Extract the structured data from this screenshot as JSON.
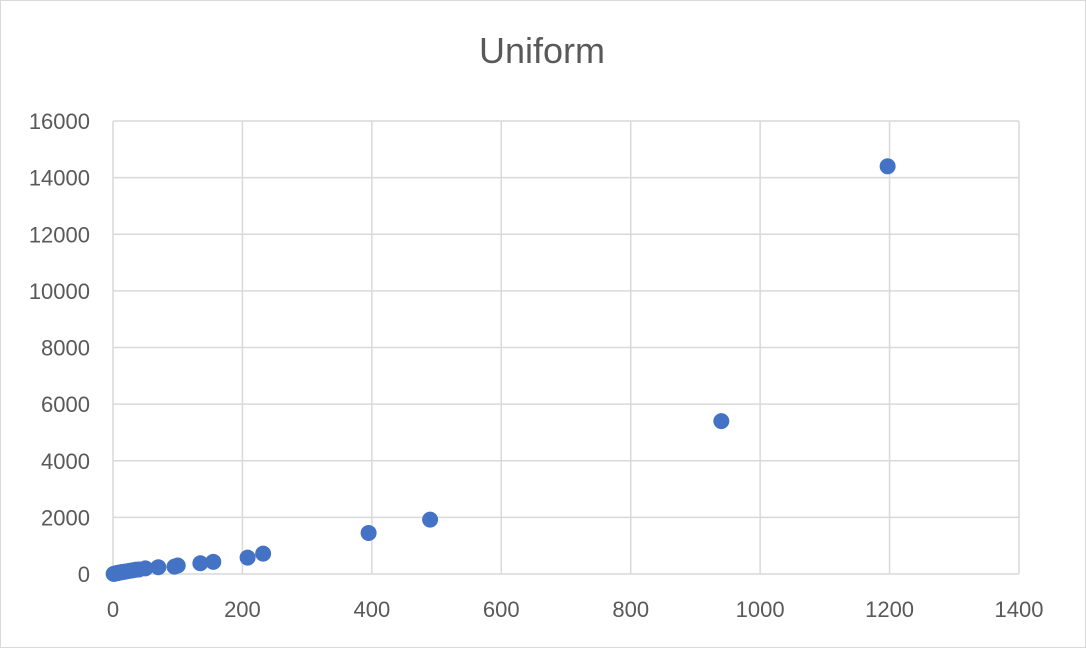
{
  "chart_data": {
    "type": "scatter",
    "title": "Uniform",
    "xlabel": "",
    "ylabel": "",
    "xlim": [
      0,
      1400
    ],
    "ylim": [
      0,
      16000
    ],
    "xticks": [
      0,
      200,
      400,
      600,
      800,
      1000,
      1200,
      1400
    ],
    "yticks": [
      0,
      2000,
      4000,
      6000,
      8000,
      10000,
      12000,
      14000,
      16000
    ],
    "grid": true,
    "legend": "none",
    "marker_color": "#4472C4",
    "series": [
      {
        "x": [
          1,
          2,
          4,
          6,
          8,
          10,
          12,
          15,
          18,
          20,
          25,
          30,
          35,
          40,
          50,
          70,
          95,
          100,
          135,
          155,
          208,
          232,
          395,
          490,
          940,
          1197
        ],
        "y": [
          5,
          10,
          20,
          30,
          40,
          50,
          60,
          70,
          80,
          90,
          110,
          130,
          150,
          160,
          200,
          240,
          260,
          300,
          380,
          430,
          580,
          720,
          1450,
          1920,
          5400,
          14400
        ]
      }
    ]
  }
}
